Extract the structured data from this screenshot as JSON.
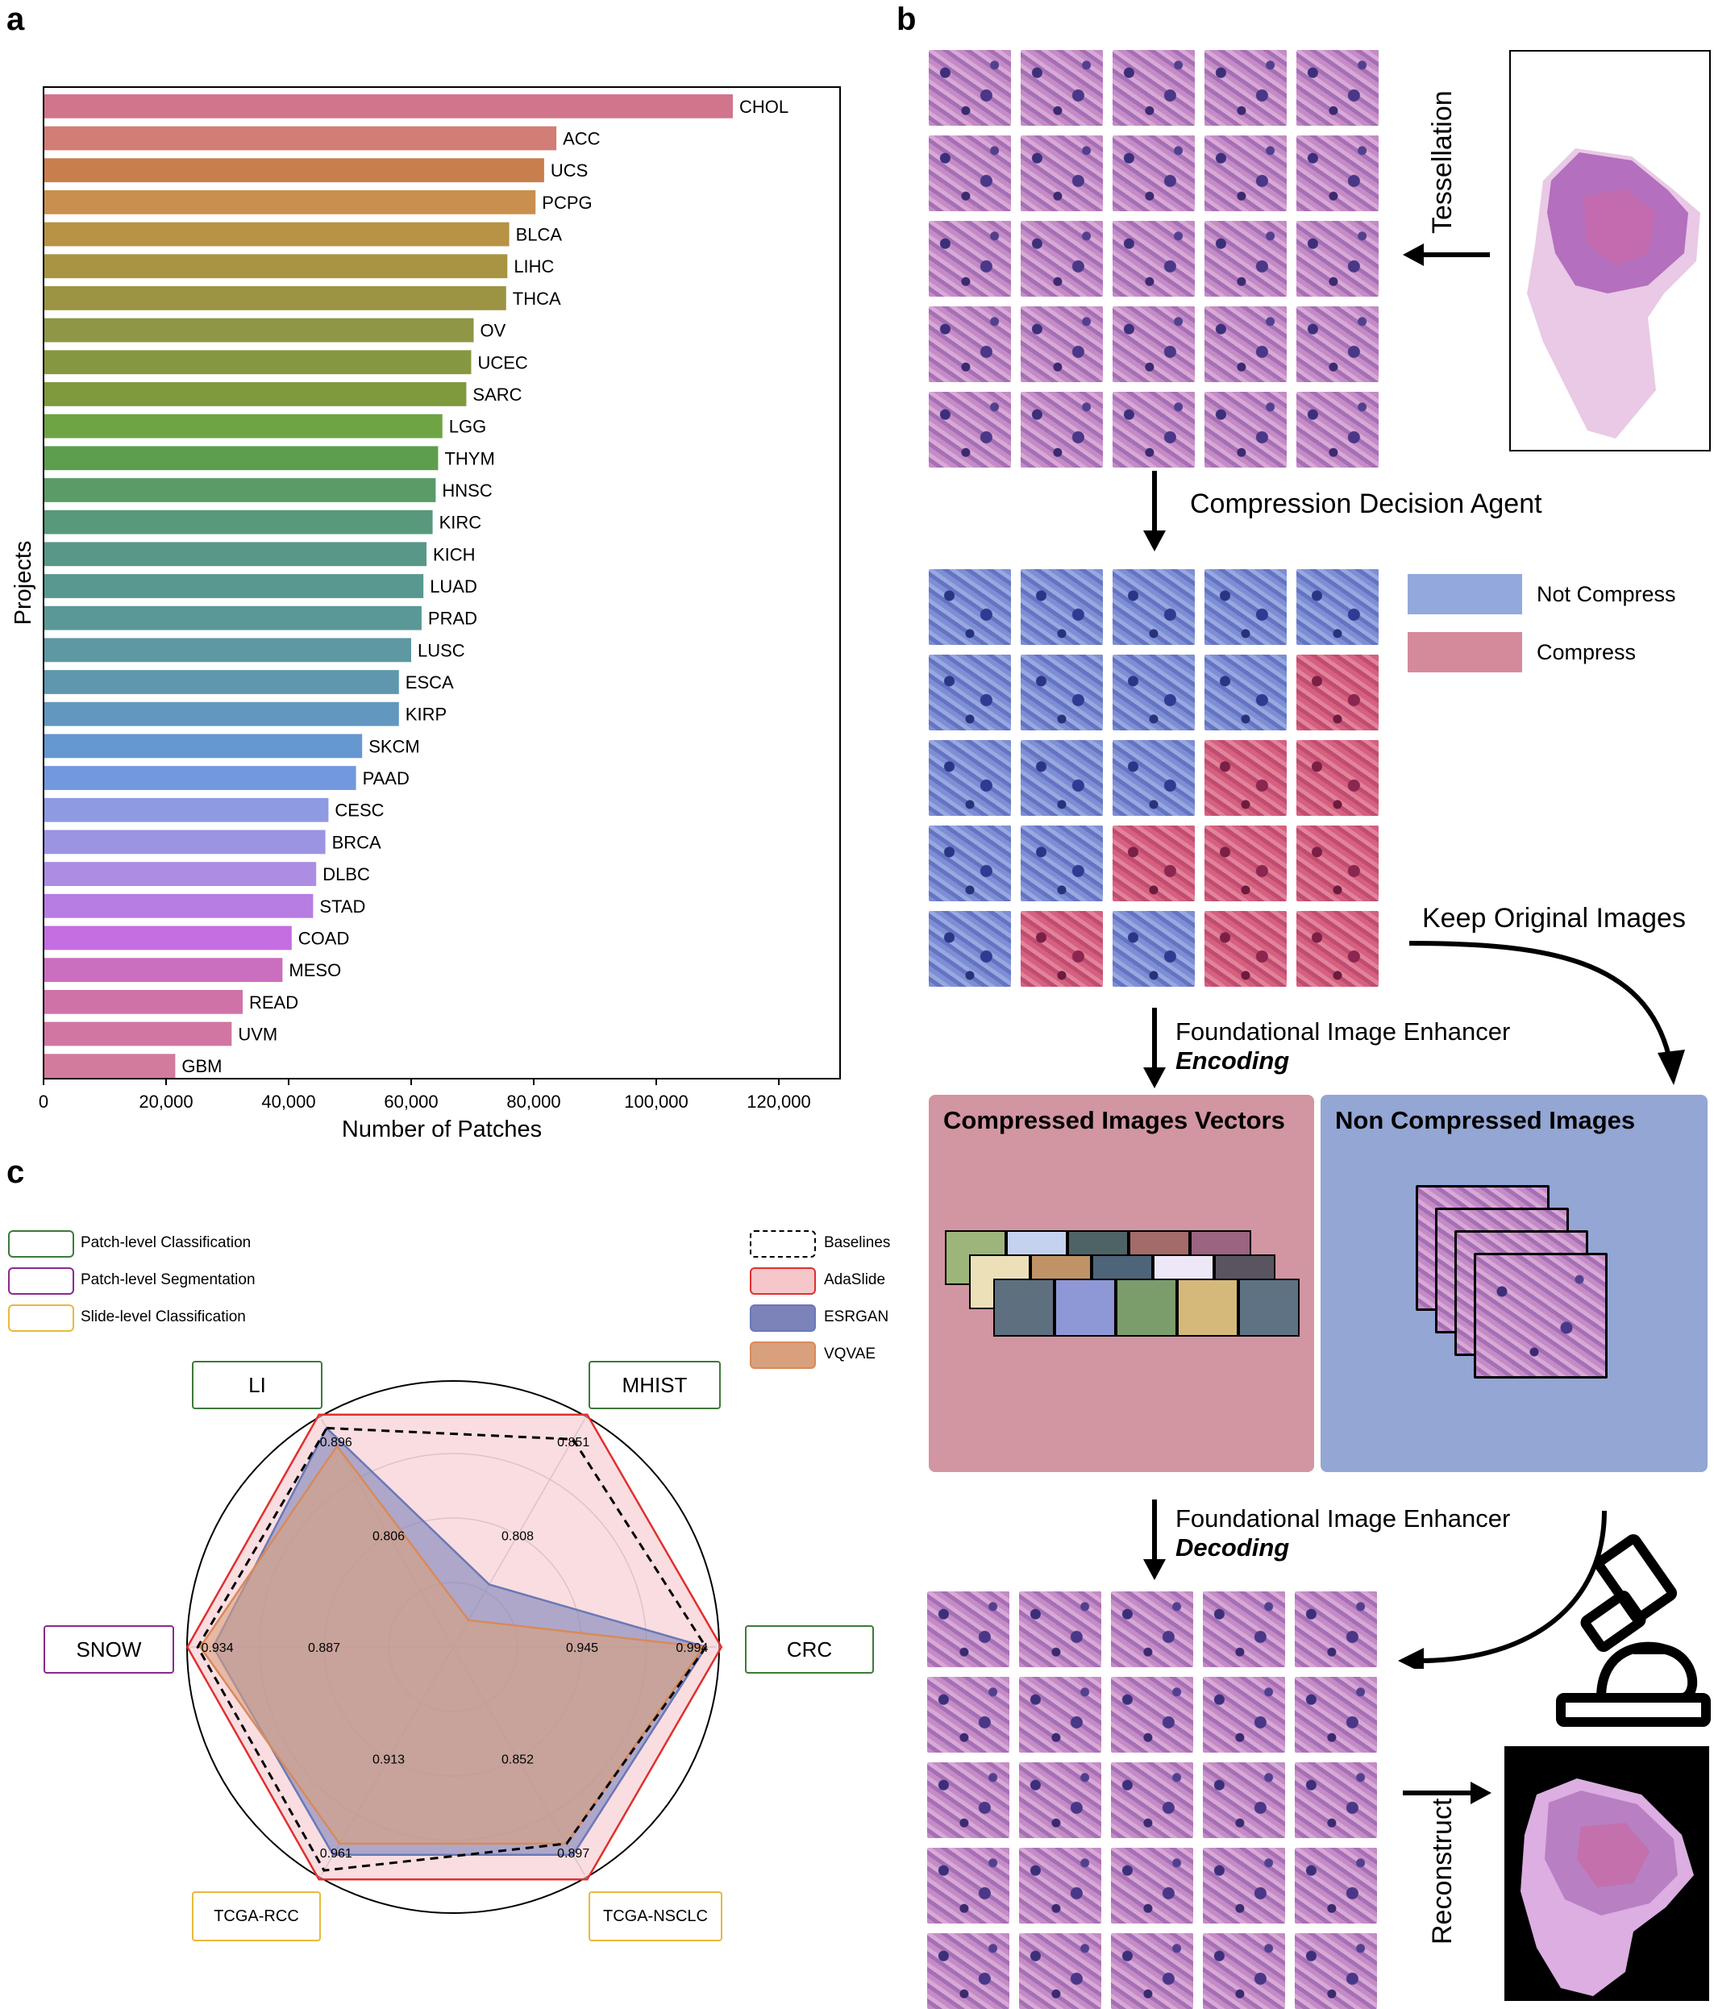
{
  "panels": {
    "a": "a",
    "b": "b",
    "c": "c"
  },
  "chart_data": [
    {
      "type": "bar",
      "orientation": "horizontal",
      "title": "",
      "xlabel": "Number of Patches",
      "ylabel": "Projects",
      "xlim": [
        0,
        130000
      ],
      "xticks": [
        "0",
        "20,000",
        "40,000",
        "60,000",
        "80,000",
        "100,000",
        "120,000"
      ],
      "xtick_values": [
        0,
        20000,
        40000,
        60000,
        80000,
        100000,
        120000
      ],
      "categories": [
        "CHOL",
        "ACC",
        "UCS",
        "PCPG",
        "BLCA",
        "LIHC",
        "THCA",
        "OV",
        "UCEC",
        "SARC",
        "LGG",
        "THYM",
        "HNSC",
        "KIRC",
        "KICH",
        "LUAD",
        "PRAD",
        "LUSC",
        "ESCA",
        "KIRP",
        "SKCM",
        "PAAD",
        "CESC",
        "BRCA",
        "DLBC",
        "STAD",
        "COAD",
        "MESO",
        "READ",
        "UVM",
        "GBM"
      ],
      "values": [
        112500,
        83700,
        81700,
        80300,
        76000,
        75700,
        75500,
        70200,
        69800,
        69000,
        65100,
        64400,
        64000,
        63500,
        62500,
        62000,
        61700,
        60000,
        58000,
        58000,
        52000,
        51000,
        46500,
        46000,
        44500,
        44000,
        40500,
        39000,
        32500,
        30700,
        21500
      ],
      "colors": [
        "#d0758b",
        "#d27d76",
        "#c97e4d",
        "#c98f4f",
        "#b89245",
        "#a99443",
        "#9c9443",
        "#8f9645",
        "#86983f",
        "#7e9a3d",
        "#6fa444",
        "#5c9e4e",
        "#5a9b67",
        "#58987b",
        "#589889",
        "#589890",
        "#5a9897",
        "#5d98a3",
        "#5f98ae",
        "#6297c0",
        "#6597d0",
        "#7299df",
        "#8e9be3",
        "#9b94e3",
        "#ad8de3",
        "#b77de2",
        "#c46ee1",
        "#cb6ec0",
        "#cf72a8",
        "#d176a3",
        "#d27b9c"
      ]
    },
    {
      "type": "radar",
      "title": "",
      "axes": [
        {
          "name": "LI",
          "value_label": "0.896",
          "mid_label": "0.806"
        },
        {
          "name": "MHIST",
          "value_label": "0.851",
          "mid_label": "0.808"
        },
        {
          "name": "CRC",
          "value_label": "0.994",
          "mid_label": "0.945"
        },
        {
          "name": "TCGA-NSCLC",
          "value_label": "0.897",
          "mid_label": "0.852"
        },
        {
          "name": "TCGA-RCC",
          "value_label": "0.961",
          "mid_label": "0.913"
        },
        {
          "name": "SNOW",
          "value_label": "0.934",
          "mid_label": "0.887"
        }
      ],
      "task_legend": [
        {
          "name": "Patch-level Classification",
          "color": "#3d7a3a"
        },
        {
          "name": "Patch-level Segmentation",
          "color": "#8b2a8c"
        },
        {
          "name": "Slide-level Classification",
          "color": "#e9b83d"
        }
      ],
      "axis_task_colors": [
        "#3d7a3a",
        "#3d7a3a",
        "#3d7a3a",
        "#e9b83d",
        "#e9b83d",
        "#8b2a8c"
      ],
      "series": [
        {
          "name": "Baselines",
          "style": "dashed",
          "stroke": "#000000",
          "fill": "none",
          "values": [
            0.98,
            0.93,
            0.98,
            0.88,
            1.0,
            0.99
          ]
        },
        {
          "name": "AdaSlide",
          "style": "solid",
          "stroke": "#e0302f",
          "fill": "#f5c7cb",
          "values": [
            1.04,
            1.04,
            1.04,
            1.04,
            1.04,
            1.03
          ]
        },
        {
          "name": "ESRGAN",
          "style": "solid",
          "stroke": "#6a78b8",
          "fill": "#7c83b9",
          "values": [
            0.98,
            0.28,
            0.98,
            0.93,
            0.93,
            0.93
          ]
        },
        {
          "name": "VQVAE",
          "style": "solid",
          "stroke": "#d88a5a",
          "fill": "#d9a07d",
          "values": [
            0.9,
            0.12,
            0.97,
            0.88,
            0.88,
            0.98
          ]
        }
      ]
    }
  ],
  "flow": {
    "tessellation": "Tessellation",
    "compression_agent": "Compression Decision Agent",
    "legend_not_compress": "Not Compress",
    "legend_compress": "Compress",
    "keep_original": "Keep Original Images",
    "enhancer_title_1": "Foundational Image Enhancer",
    "encoding": "Encoding",
    "compressed_box_title": "Compressed Images Vectors",
    "noncompressed_box_title": "Non Compressed Images",
    "enhancer_title_2": "Foundational Image Enhancer",
    "decoding": "Decoding",
    "reconstruct": "Reconstruct",
    "mask": [
      "b",
      "b",
      "b",
      "b",
      "b",
      "b",
      "b",
      "b",
      "b",
      "r",
      "b",
      "b",
      "b",
      "r",
      "r",
      "b",
      "b",
      "r",
      "r",
      "r",
      "b",
      "r",
      "b",
      "r",
      "r"
    ],
    "vector_rows": [
      [
        "#9db47a",
        "#c5d2ef",
        "#4d6366",
        "#a36b69",
        "#9b6480"
      ],
      [
        "#ece0b9",
        "#c09366",
        "#4e6478",
        "#ede7f8",
        "#5a5461"
      ],
      [
        "#5e6f80",
        "#8f98d6",
        "#7b9d6c",
        "#d5b97a",
        "#5f7284"
      ]
    ]
  }
}
